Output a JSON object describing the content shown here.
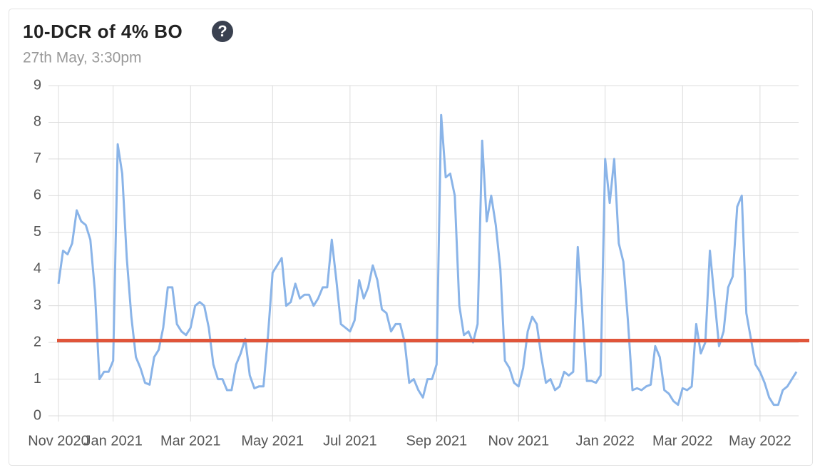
{
  "chart_data": {
    "type": "line",
    "title": "10-DCR of 4% BO",
    "help_icon": "?",
    "subtitle": "27th May, 3:30pm",
    "color": "#8ab4e8",
    "ylim": [
      0,
      9
    ],
    "yticks": [
      0,
      1,
      2,
      3,
      4,
      5,
      6,
      7,
      8,
      9
    ],
    "grid": true,
    "reference_line": {
      "value": 2.05,
      "color": "#e0553a"
    },
    "categories": [
      "Nov 2020",
      null,
      null,
      null,
      null,
      null,
      null,
      null,
      null,
      null,
      null,
      null,
      "Jan 2021",
      null,
      null,
      null,
      null,
      null,
      null,
      null,
      null,
      null,
      null,
      null,
      null,
      null,
      null,
      null,
      null,
      "Mar 2021",
      null,
      null,
      null,
      null,
      null,
      null,
      null,
      null,
      null,
      null,
      null,
      null,
      null,
      null,
      null,
      null,
      null,
      "May 2021",
      null,
      null,
      null,
      null,
      null,
      null,
      null,
      null,
      null,
      null,
      null,
      null,
      null,
      null,
      null,
      null,
      "Jul 2021",
      null,
      null,
      null,
      null,
      null,
      null,
      null,
      null,
      null,
      null,
      null,
      null,
      null,
      null,
      null,
      null,
      null,
      null,
      "Sep 2021",
      null,
      null,
      null,
      null,
      null,
      null,
      null,
      null,
      null,
      null,
      null,
      null,
      null,
      null,
      null,
      null,
      null,
      "Nov 2021",
      null,
      null,
      null,
      null,
      null,
      null,
      null,
      null,
      null,
      null,
      null,
      null,
      null,
      null,
      null,
      null,
      null,
      null,
      "Jan 2022",
      null,
      null,
      null,
      null,
      null,
      null,
      null,
      null,
      null,
      null,
      null,
      null,
      null,
      null,
      null,
      null,
      "Mar 2022",
      null,
      null,
      null,
      null,
      null,
      null,
      null,
      null,
      null,
      null,
      null,
      null,
      null,
      null,
      null,
      null,
      "May 2022",
      null,
      null,
      null,
      null,
      null,
      null,
      null,
      null
    ],
    "values": [
      3.6,
      4.5,
      4.4,
      4.7,
      5.6,
      5.3,
      5.2,
      4.8,
      3.4,
      1.0,
      1.2,
      1.2,
      1.5,
      7.4,
      6.6,
      4.3,
      2.7,
      1.6,
      1.3,
      0.9,
      0.85,
      1.6,
      1.8,
      2.4,
      3.5,
      3.5,
      2.5,
      2.3,
      2.2,
      2.4,
      3.0,
      3.1,
      3.0,
      2.4,
      1.4,
      1.0,
      1.0,
      0.7,
      0.7,
      1.4,
      1.7,
      2.1,
      1.1,
      0.75,
      0.8,
      0.8,
      2.2,
      3.9,
      4.1,
      4.3,
      3.0,
      3.1,
      3.6,
      3.2,
      3.3,
      3.3,
      3.0,
      3.2,
      3.5,
      3.5,
      4.8,
      3.7,
      2.5,
      2.4,
      2.3,
      2.6,
      3.7,
      3.2,
      3.5,
      4.1,
      3.7,
      2.9,
      2.8,
      2.3,
      2.5,
      2.5,
      2.0,
      0.9,
      1.0,
      0.7,
      0.5,
      1.0,
      1.0,
      1.4,
      8.2,
      6.5,
      6.6,
      6.0,
      3.0,
      2.2,
      2.3,
      2.0,
      2.5,
      7.5,
      5.3,
      6.0,
      5.2,
      4.0,
      1.5,
      1.3,
      0.9,
      0.8,
      1.3,
      2.3,
      2.7,
      2.5,
      1.6,
      0.9,
      1.0,
      0.7,
      0.8,
      1.2,
      1.1,
      1.2,
      4.6,
      2.8,
      0.95,
      0.95,
      0.9,
      1.1,
      7.0,
      5.8,
      7.0,
      4.7,
      4.2,
      2.6,
      0.7,
      0.75,
      0.7,
      0.8,
      0.85,
      1.9,
      1.6,
      0.7,
      0.6,
      0.4,
      0.3,
      0.75,
      0.7,
      0.8,
      2.5,
      1.7,
      2.0,
      4.5,
      3.2,
      1.9,
      2.3,
      3.5,
      3.8,
      5.7,
      6.0,
      2.8,
      2.1,
      1.4,
      1.2,
      0.9,
      0.5,
      0.3,
      0.3,
      0.7,
      0.8,
      1.0,
      1.2
    ]
  }
}
